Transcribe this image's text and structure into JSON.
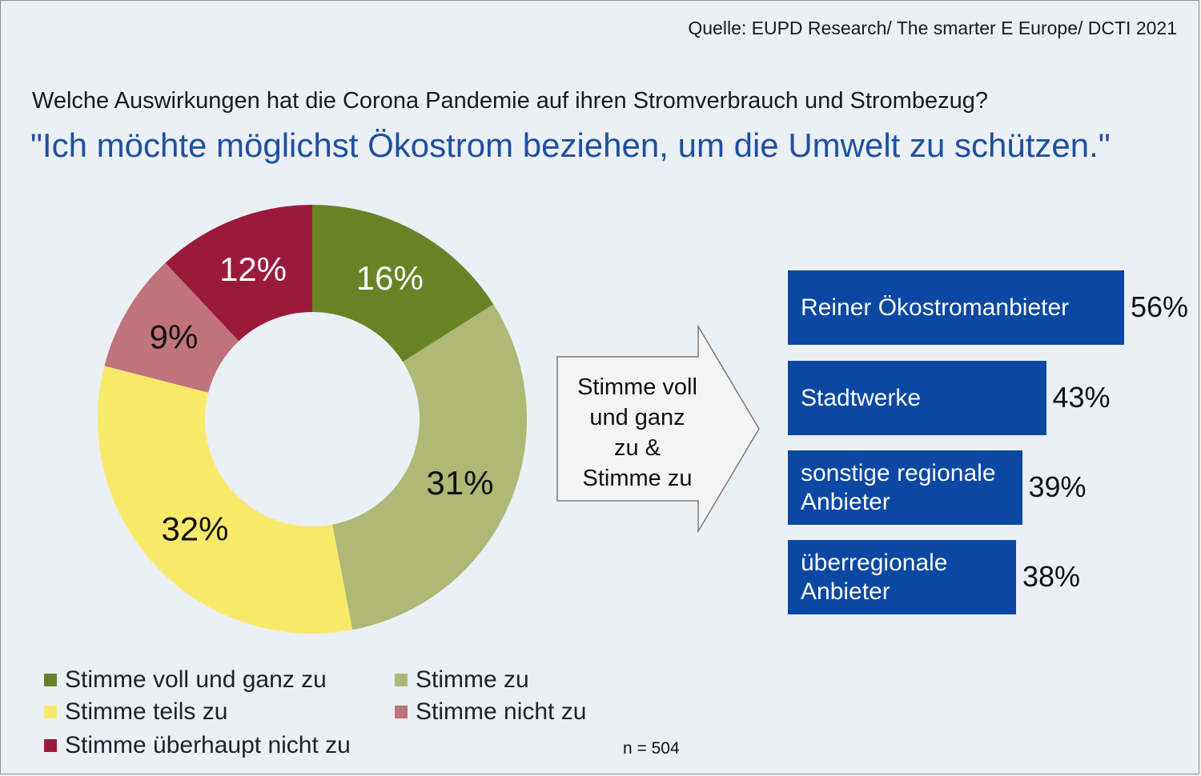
{
  "source": "Quelle: EUPD Research/ The smarter E Europe/ DCTI 2021",
  "question": "Welche Auswirkungen hat die Corona Pandemie auf ihren Stromverbrauch und Strombezug?",
  "statement": "\"Ich möchte möglichst Ökostrom beziehen, um die Umwelt zu schützen.\"",
  "arrow_text": "Stimme voll\nund ganz\nzu &\nStimme zu",
  "sample_size": "n = 504",
  "chart_data": [
    {
      "type": "pie",
      "variant": "donut",
      "categories": [
        "Stimme voll und ganz zu",
        "Stimme zu",
        "Stimme teils zu",
        "Stimme nicht zu",
        "Stimme überhaupt nicht zu"
      ],
      "values": [
        16,
        31,
        32,
        9,
        12
      ],
      "labels": [
        "16%",
        "31%",
        "32%",
        "9%",
        "12%"
      ],
      "colors": [
        "#6a8226",
        "#afb874",
        "#f9e96a",
        "#c0737b",
        "#9b1a3b"
      ],
      "label_colors": [
        "#ffffff",
        "#111111",
        "#111111",
        "#111111",
        "#ffffff"
      ],
      "legend_position": "bottom"
    },
    {
      "type": "bar",
      "orientation": "horizontal",
      "categories": [
        "Reiner Ökostromanbieter",
        "Stadtwerke",
        "sonstige regionale\nAnbieter",
        "überregionale\nAnbieter"
      ],
      "values": [
        56,
        43,
        39,
        38
      ],
      "labels": [
        "56%",
        "43%",
        "39%",
        "38%"
      ],
      "color": "#0b48a3"
    }
  ]
}
